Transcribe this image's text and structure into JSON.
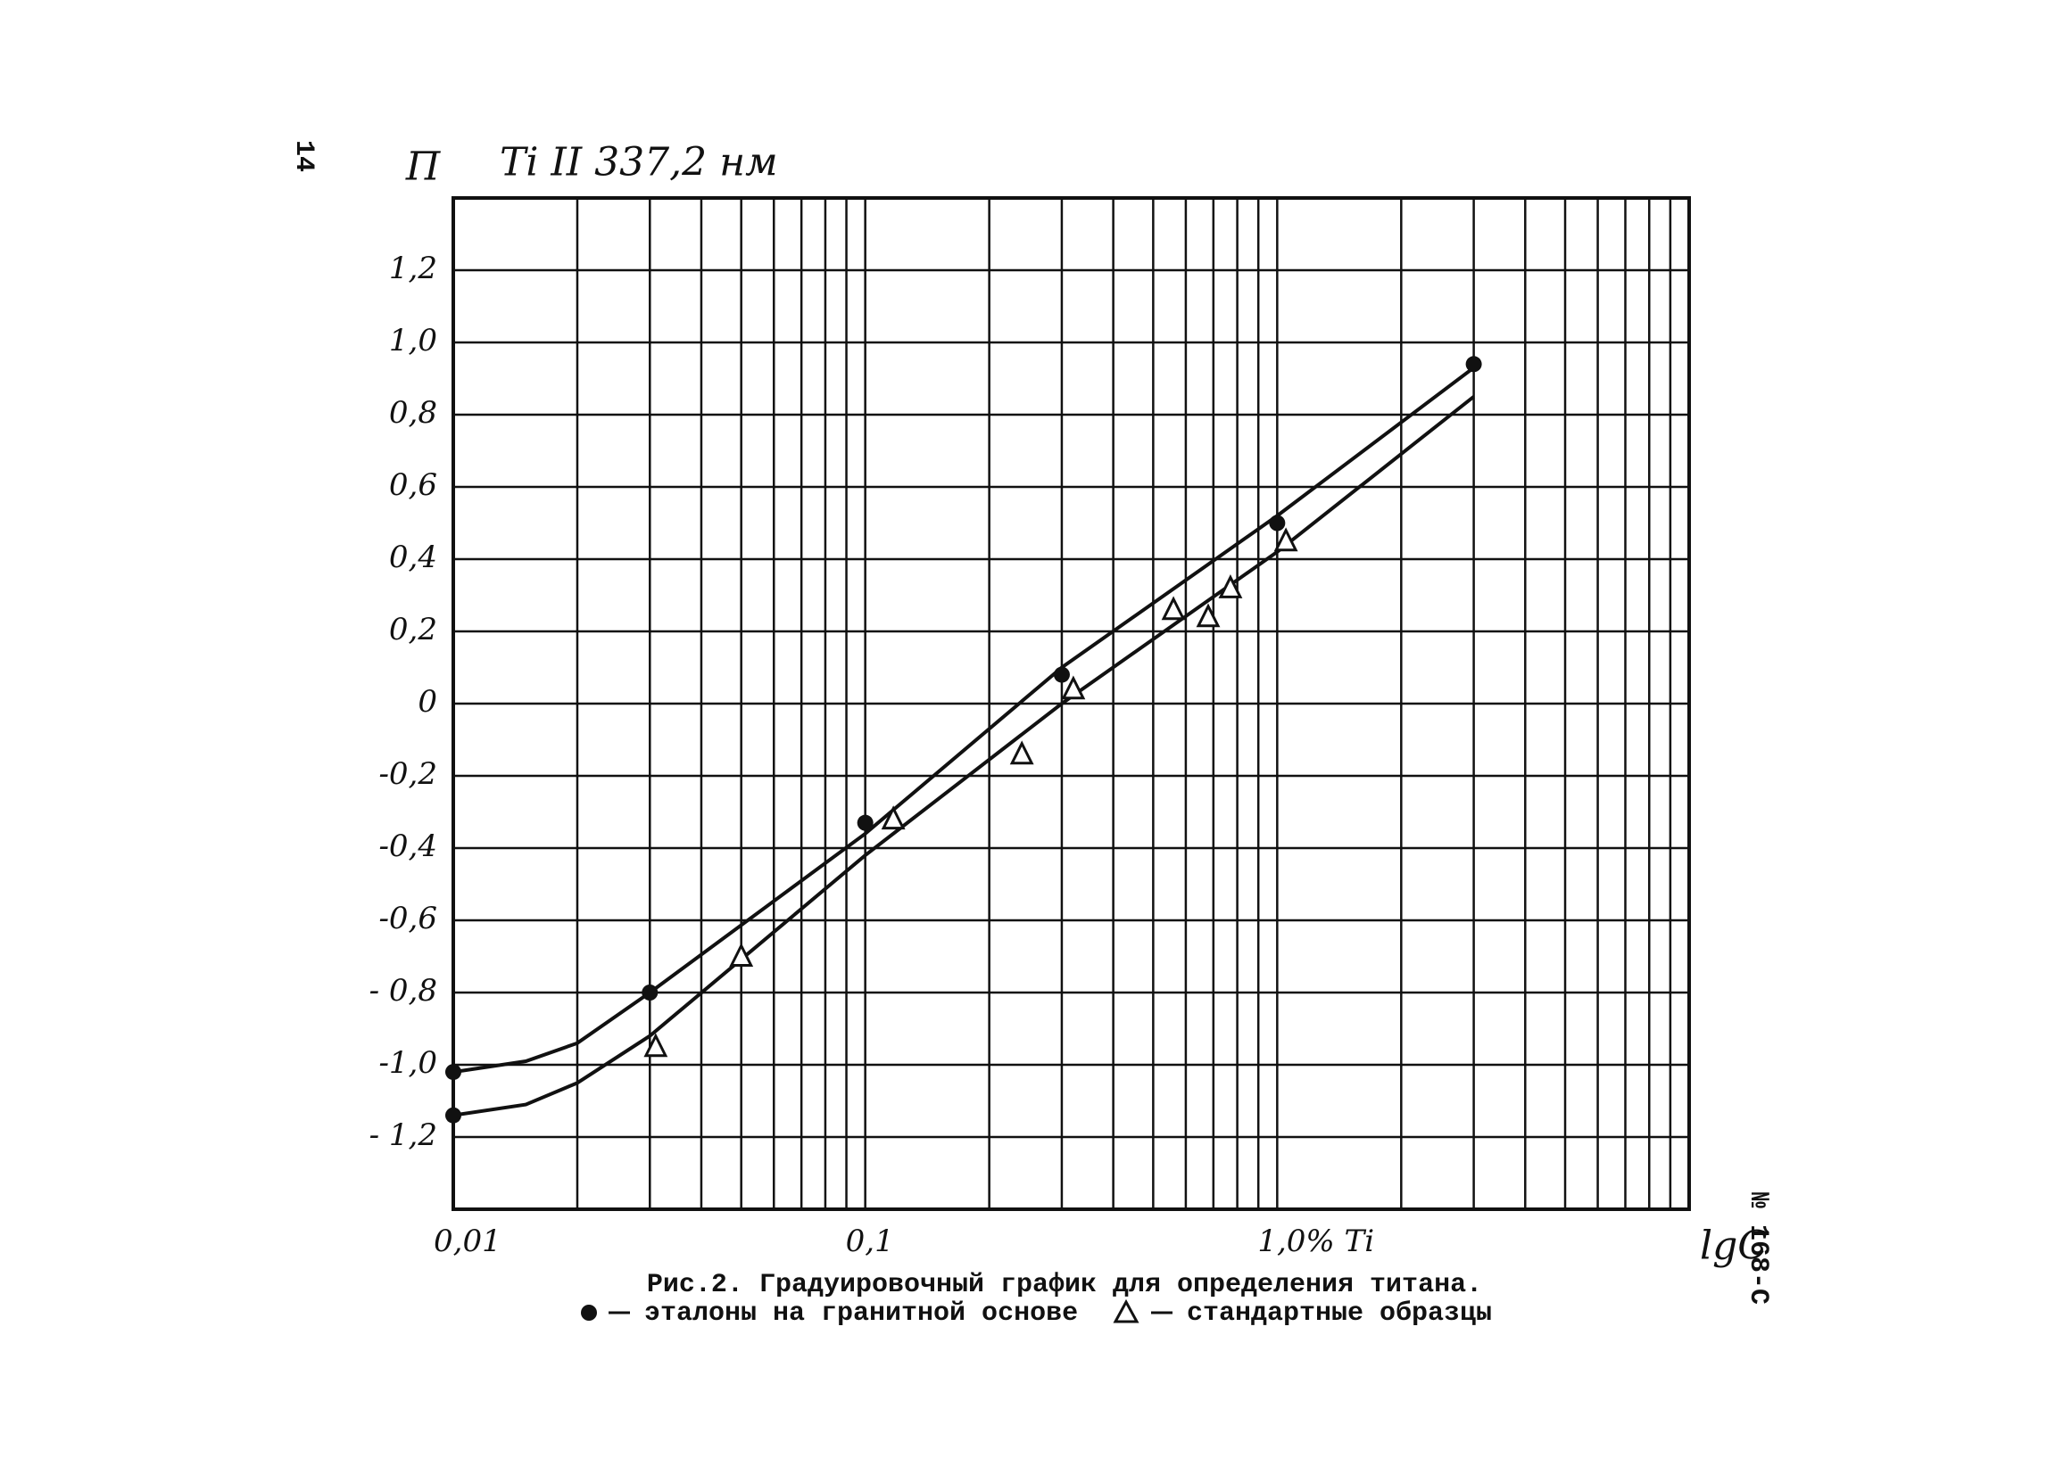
{
  "page_number": "14",
  "side_note": "№ 168-С",
  "chart_data": {
    "type": "scatter",
    "title": "Ti II 337,2 нм",
    "y_label": "П",
    "x_label": "lgC",
    "caption": "Рис.2. Градуировочный график для определения титана.",
    "log_x": true,
    "grid": true,
    "xlim": [
      0.01,
      10
    ],
    "ylim": [
      -1.4,
      1.4
    ],
    "xticks": [
      {
        "value": 0.01,
        "label": "0,01"
      },
      {
        "value": 0.1,
        "label": "0,1"
      },
      {
        "value": 1,
        "label": "1,0% Ti"
      }
    ],
    "x_minor_ticks": [
      0.02,
      0.03,
      0.04,
      0.05,
      0.06,
      0.07,
      0.08,
      0.09,
      0.2,
      0.3,
      0.4,
      0.5,
      0.6,
      0.7,
      0.8,
      0.9,
      2,
      3,
      4,
      5,
      6,
      7,
      8,
      9
    ],
    "yticks": [
      {
        "value": -1.2,
        "label": "- 1,2"
      },
      {
        "value": -1.0,
        "label": "-1,0"
      },
      {
        "value": -0.8,
        "label": "- 0,8"
      },
      {
        "value": -0.6,
        "label": "-0,6"
      },
      {
        "value": -0.4,
        "label": "-0,4"
      },
      {
        "value": -0.2,
        "label": "-0,2"
      },
      0,
      {
        "value": 0.2,
        "label": "0,2"
      },
      {
        "value": 0.4,
        "label": "0,4"
      },
      {
        "value": 0.6,
        "label": "0,6"
      },
      {
        "value": 0.8,
        "label": "0,8"
      },
      {
        "value": 1.0,
        "label": "1,0"
      },
      {
        "value": 1.2,
        "label": "1,2"
      }
    ],
    "series": [
      {
        "name": "эталоны на гранитной основе",
        "marker": "dot",
        "color": "#111111",
        "x": [
          0.01,
          0.01,
          0.03,
          0.1,
          0.3,
          1.0,
          3.0
        ],
        "values": [
          -1.02,
          -1.14,
          -0.8,
          -0.33,
          0.08,
          0.5,
          0.94
        ]
      },
      {
        "name": "стандартные образцы",
        "marker": "triangle",
        "color": "#111111",
        "x": [
          0.031,
          0.05,
          0.117,
          0.24,
          0.32,
          0.56,
          0.68,
          0.77,
          1.05
        ],
        "values": [
          -0.95,
          -0.7,
          -0.32,
          -0.14,
          0.04,
          0.26,
          0.24,
          0.32,
          0.45
        ]
      }
    ],
    "curves": [
      {
        "color": "#111111",
        "x": [
          0.01,
          0.015,
          0.02,
          0.03,
          0.1,
          0.3,
          1.0,
          3.0
        ],
        "values": [
          -1.02,
          -0.99,
          -0.94,
          -0.8,
          -0.36,
          0.1,
          0.52,
          0.93
        ]
      },
      {
        "color": "#111111",
        "x": [
          0.01,
          0.015,
          0.02,
          0.03,
          0.1,
          0.3,
          1.0,
          3.0
        ],
        "values": [
          -1.14,
          -1.11,
          -1.05,
          -0.92,
          -0.42,
          0.0,
          0.42,
          0.85
        ]
      }
    ]
  }
}
